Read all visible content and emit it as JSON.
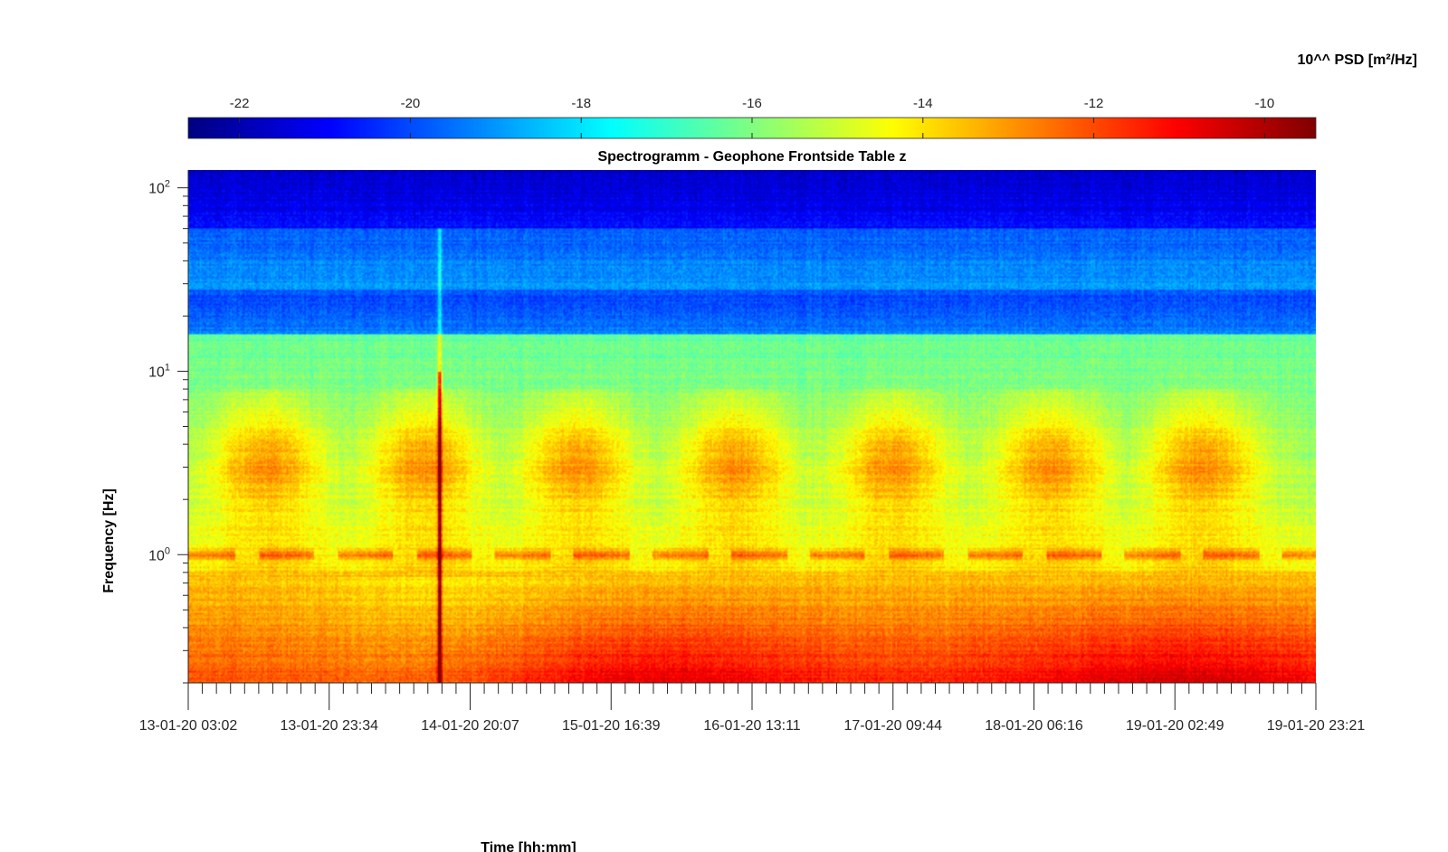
{
  "chart_data": {
    "type": "heatmap",
    "title": "Spectrogramm - Geophone Frontside Table z",
    "xlabel": "Time [hh:mm]",
    "ylabel": "Frequency [Hz]",
    "y_scale": "log",
    "ylim": [
      0.2,
      125
    ],
    "x_tick_labels": [
      "13-01-20 03:02",
      "13-01-20 23:34",
      "14-01-20 20:07",
      "15-01-20 16:39",
      "16-01-20 13:11",
      "17-01-20 09:44",
      "18-01-20 06:16",
      "19-01-20 02:49",
      "19-01-20 23:21"
    ],
    "y_ticks": [
      {
        "base": "10",
        "exp": "0",
        "value": 1
      },
      {
        "base": "10",
        "exp": "1",
        "value": 10
      },
      {
        "base": "10",
        "exp": "2",
        "value": 100
      }
    ],
    "colorbar": {
      "label": "10^^ PSD [m²/Hz]",
      "min": -22.6,
      "max": -9.4,
      "ticks": [
        -22,
        -20,
        -18,
        -16,
        -14,
        -12,
        -10
      ],
      "colormap": "jet"
    },
    "features": {
      "spike_time_fraction": 0.223,
      "daily_activity_centers": [
        0.07,
        0.21,
        0.345,
        0.485,
        0.625,
        0.765,
        0.9
      ],
      "activity_band_hz": [
        2,
        6
      ],
      "line_1hz_psd": -13.2,
      "low_freq_max_psd": -11.2
    }
  }
}
